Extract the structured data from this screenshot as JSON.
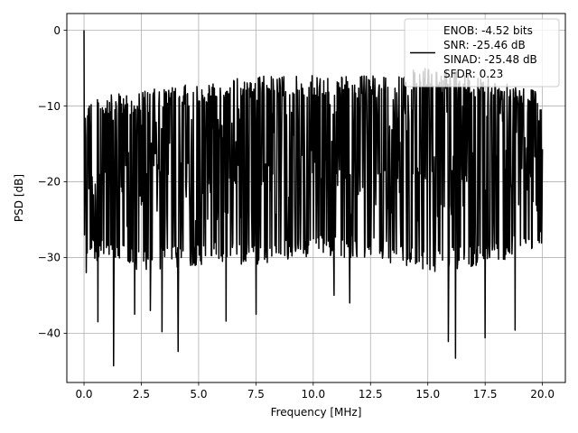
{
  "chart_data": {
    "type": "line",
    "title": "",
    "xlabel": "Frequency [MHz]",
    "ylabel": "PSD [dB]",
    "xlim": [
      -0.75,
      21.0
    ],
    "ylim": [
      -46.5,
      2.2
    ],
    "xticks": [
      0.0,
      2.5,
      5.0,
      7.5,
      10.0,
      12.5,
      15.0,
      17.5,
      20.0
    ],
    "xtick_labels": [
      "0.0",
      "2.5",
      "5.0",
      "7.5",
      "10.0",
      "12.5",
      "15.0",
      "17.5",
      "20.0"
    ],
    "yticks": [
      0,
      -10,
      -20,
      -30,
      -40
    ],
    "ytick_labels": [
      "0",
      "−10",
      "−20",
      "−30",
      "−40"
    ],
    "grid": true,
    "legend_position": "top-right",
    "legend_lines": [
      "ENOB: -4.52 bits",
      "SNR: -25.46 dB",
      "SINAD: -25.48 dB",
      "SFDR: 0.23"
    ],
    "series": [
      {
        "color": "#000000",
        "x_range": [
          0,
          20
        ],
        "num_points": 1024,
        "peak": {
          "x": 0.0,
          "y": 0.0
        },
        "trend": [
          {
            "x": 0.0,
            "upper": -9,
            "lower": -30,
            "median": -19
          },
          {
            "x": 2.5,
            "upper": -8,
            "lower": -32,
            "median": -18
          },
          {
            "x": 5.0,
            "upper": -7,
            "lower": -31,
            "median": -17
          },
          {
            "x": 7.5,
            "upper": -6,
            "lower": -31,
            "median": -16
          },
          {
            "x": 10.0,
            "upper": -6,
            "lower": -30,
            "median": -16
          },
          {
            "x": 12.5,
            "upper": -6,
            "lower": -30,
            "median": -16
          },
          {
            "x": 15.0,
            "upper": -5,
            "lower": -32,
            "median": -16
          },
          {
            "x": 17.5,
            "upper": -6,
            "lower": -31,
            "median": -16
          },
          {
            "x": 20.0,
            "upper": -8,
            "lower": -29,
            "median": -17
          }
        ],
        "notable_minima": [
          {
            "x": 0.1,
            "y": -32.0
          },
          {
            "x": 0.6,
            "y": -38.5
          },
          {
            "x": 1.3,
            "y": -44.3
          },
          {
            "x": 2.2,
            "y": -37.5
          },
          {
            "x": 2.9,
            "y": -37.0
          },
          {
            "x": 3.4,
            "y": -39.8
          },
          {
            "x": 4.1,
            "y": -42.4
          },
          {
            "x": 6.2,
            "y": -38.4
          },
          {
            "x": 7.5,
            "y": -37.5
          },
          {
            "x": 10.9,
            "y": -35.0
          },
          {
            "x": 11.6,
            "y": -36.0
          },
          {
            "x": 15.9,
            "y": -41.1
          },
          {
            "x": 16.2,
            "y": -43.3
          },
          {
            "x": 17.5,
            "y": -40.6
          },
          {
            "x": 18.8,
            "y": -39.6
          }
        ]
      }
    ]
  }
}
